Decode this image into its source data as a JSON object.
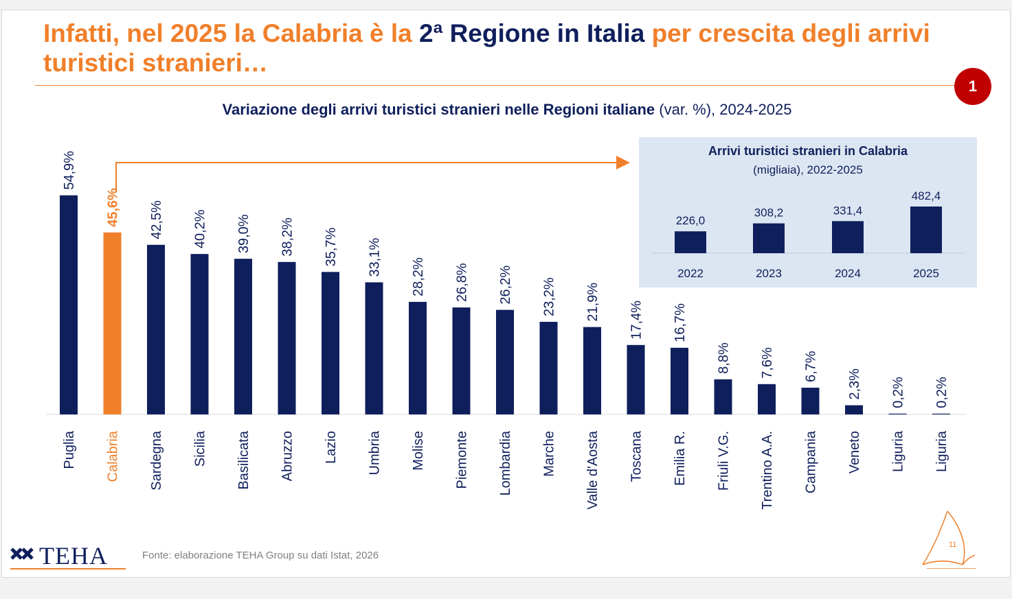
{
  "slide": {
    "title_part1": "Infatti, nel 2025 la Calabria è la ",
    "title_highlight": "2ª Regione in Italia",
    "title_part2": " per crescita degli arrivi turistici stranieri…",
    "badge": "1",
    "subtitle_bold": "Variazione degli arrivi turistici stranieri nelle Regioni italiane",
    "subtitle_rest": " (var. %), 2024-2025",
    "footer": "Fonte: elaborazione TEHA Group su dati Istat, 2026",
    "logo": "TEHA",
    "page_number": "11"
  },
  "colors": {
    "navy": "#0f1f5c",
    "orange": "#f07f2a",
    "badge_red": "#c00000",
    "inset_bg": "#dce6f2"
  },
  "chart_data": [
    {
      "type": "bar",
      "title": "Variazione degli arrivi turistici stranieri nelle Regioni italiane (var. %), 2024-2025",
      "categories": [
        "Puglia",
        "Calabria",
        "Sardegna",
        "Sicilia",
        "Basilicata",
        "Abruzzo",
        "Lazio",
        "Umbria",
        "Molise",
        "Piemonte",
        "Lombardia",
        "Marche",
        "Valle d'Aosta",
        "Toscana",
        "Emilia R.",
        "Friuli V.G.",
        "Trentino A.A.",
        "Campania",
        "Veneto",
        "Liguria",
        "Liguria"
      ],
      "values": [
        54.9,
        45.6,
        42.5,
        40.2,
        39.0,
        38.2,
        35.7,
        33.1,
        28.2,
        26.8,
        26.2,
        23.2,
        21.9,
        17.4,
        16.7,
        8.8,
        7.6,
        6.7,
        2.3,
        0.2,
        0.2
      ],
      "labels": [
        "54,9%",
        "45,6%",
        "42,5%",
        "40,2%",
        "39,0%",
        "38,2%",
        "35,7%",
        "33,1%",
        "28,2%",
        "26,8%",
        "26,2%",
        "23,2%",
        "21,9%",
        "17,4%",
        "16,7%",
        "8,8%",
        "7,6%",
        "6,7%",
        "2,3%",
        "0,2%",
        "0,2%"
      ],
      "highlight_category": "Calabria",
      "ylim": [
        0,
        60
      ],
      "grid": false
    },
    {
      "type": "bar",
      "title": "Arrivi turistici stranieri in Calabria",
      "subtitle": "(migliaia), 2022-2025",
      "categories": [
        "2022",
        "2023",
        "2024",
        "2025"
      ],
      "values": [
        226.0,
        308.2,
        331.4,
        482.4
      ],
      "labels": [
        "226,0",
        "308,2",
        "331,4",
        "482,4"
      ],
      "ylim": [
        0,
        482.4
      ],
      "grid": false
    }
  ]
}
